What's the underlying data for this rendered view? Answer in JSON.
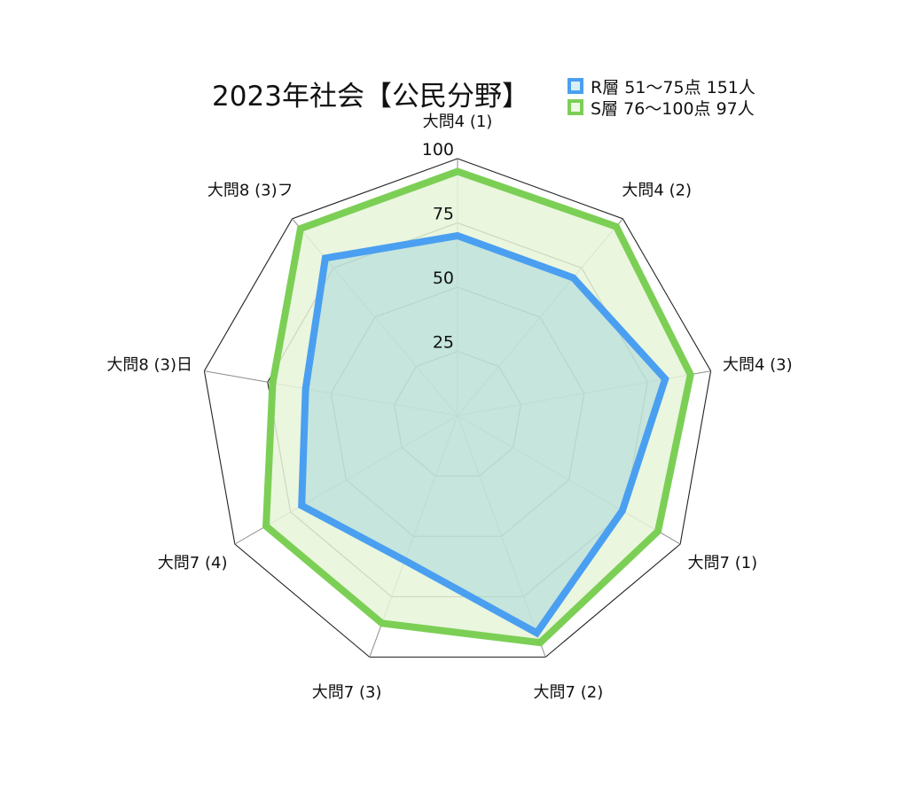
{
  "chart_data": {
    "type": "radar",
    "title": "2023年社会【公民分野】",
    "axes": [
      "大問4 (1)",
      "大問4 (2)",
      "大問4 (3)",
      "大問7 (1)",
      "大問7 (2)",
      "大問7 (3)",
      "大問7 (4)",
      "大問8 (3)日",
      "大問8 (3)フ"
    ],
    "rlim": [
      0,
      100
    ],
    "ticks": [
      "25",
      "50",
      "75",
      "100"
    ],
    "grid": true,
    "legend_position": "top-right",
    "series": [
      {
        "name": "R層 51〜75点 151人",
        "color": "#4a9ff0",
        "fill": "#9fd3dc",
        "values": [
          70,
          70,
          82,
          74,
          90,
          60,
          70,
          60,
          80
        ]
      },
      {
        "name": "S層 76〜100点 97人",
        "color": "#7ccf55",
        "fill": "#e6f5d8",
        "values": [
          95,
          96,
          92,
          90,
          94,
          86,
          86,
          73,
          95
        ]
      }
    ]
  }
}
